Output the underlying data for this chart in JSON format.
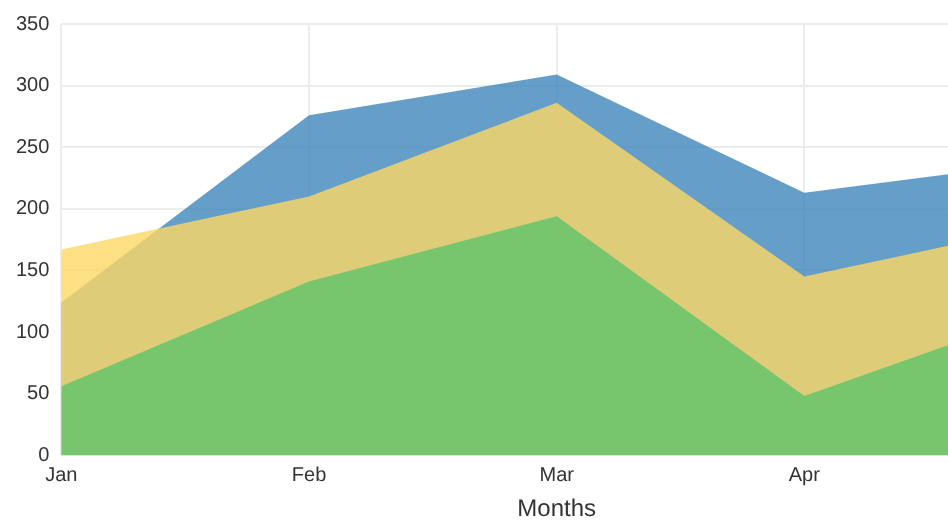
{
  "chart_data": {
    "type": "area",
    "xlabel": "Months",
    "categories": [
      "Jan",
      "Feb",
      "Mar",
      "Apr",
      null
    ],
    "series": [
      {
        "color": "#5cc46a",
        "values": [
          56,
          141,
          194,
          48,
          119
        ]
      },
      {
        "color": "#fdd765",
        "values": [
          167,
          210,
          286,
          145,
          188
        ]
      },
      {
        "color": "#3f86bb",
        "values": [
          124,
          276,
          309,
          213,
          239
        ]
      }
    ],
    "ylim": [
      0,
      350
    ],
    "yticks": [
      0,
      50,
      100,
      150,
      200,
      250,
      300,
      350
    ],
    "grid": true,
    "legend": false
  }
}
